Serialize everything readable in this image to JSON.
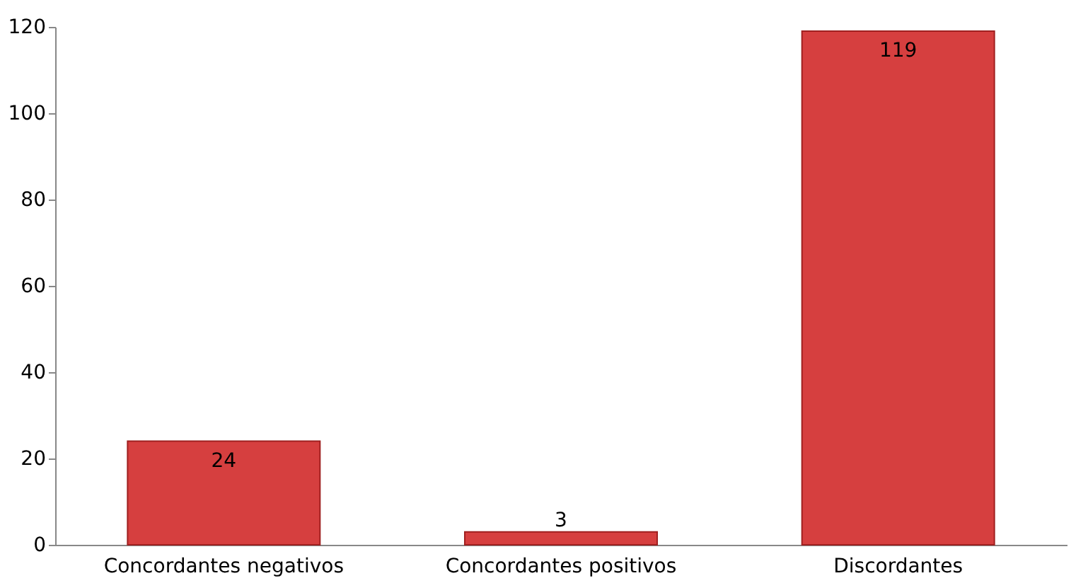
{
  "chart_data": {
    "type": "bar",
    "categories": [
      "Concordantes negativos",
      "Concordantes positivos",
      "Discordantes"
    ],
    "values": [
      24,
      3,
      119
    ],
    "color": "#d63f3f",
    "ylim": [
      0,
      120
    ],
    "yticks": [
      0,
      20,
      40,
      60,
      80,
      100,
      120
    ],
    "grid": false,
    "data_labels": true
  }
}
